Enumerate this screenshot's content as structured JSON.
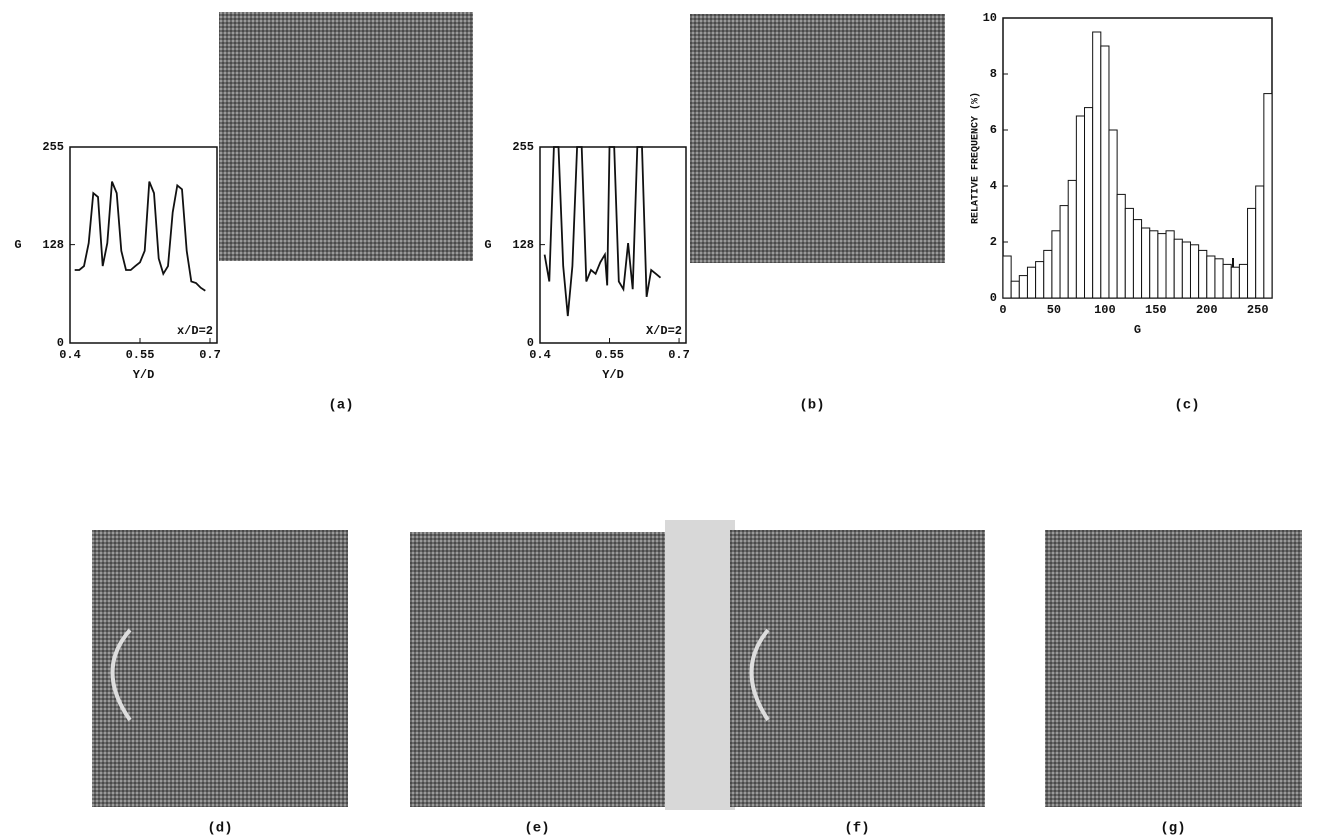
{
  "chart_data": [
    {
      "type": "line",
      "x": [
        0.41,
        0.42,
        0.43,
        0.44,
        0.45,
        0.46,
        0.47,
        0.48,
        0.49,
        0.5,
        0.51,
        0.52,
        0.53,
        0.54,
        0.55,
        0.56,
        0.57,
        0.58,
        0.59,
        0.6,
        0.61,
        0.62,
        0.63,
        0.64,
        0.65,
        0.66,
        0.67,
        0.68,
        0.69
      ],
      "values": [
        95,
        95,
        100,
        130,
        195,
        190,
        100,
        130,
        210,
        195,
        120,
        95,
        95,
        100,
        105,
        120,
        210,
        195,
        110,
        90,
        100,
        170,
        205,
        200,
        120,
        80,
        78,
        72,
        68
      ],
      "xlim": [
        0.4,
        0.715
      ],
      "ylim": [
        0,
        255
      ],
      "xticks": [
        0.4,
        0.55,
        0.7
      ],
      "yticks": [
        0,
        128,
        255
      ],
      "x_label": "Y/D",
      "y_label": "G",
      "annotation": "x/D=2",
      "color": "#111111"
    },
    {
      "type": "line",
      "x": [
        0.41,
        0.42,
        0.43,
        0.44,
        0.45,
        0.46,
        0.47,
        0.48,
        0.49,
        0.5,
        0.51,
        0.52,
        0.53,
        0.54,
        0.545,
        0.55,
        0.56,
        0.57,
        0.58,
        0.59,
        0.6,
        0.61,
        0.62,
        0.63,
        0.64,
        0.65,
        0.66
      ],
      "values": [
        115,
        80,
        255,
        255,
        100,
        35,
        100,
        255,
        255,
        80,
        95,
        90,
        105,
        115,
        75,
        255,
        255,
        80,
        70,
        130,
        70,
        255,
        255,
        60,
        95,
        90,
        85
      ],
      "xlim": [
        0.4,
        0.715
      ],
      "ylim": [
        0,
        255
      ],
      "xticks": [
        0.4,
        0.55,
        0.7
      ],
      "yticks": [
        0,
        128,
        255
      ],
      "x_label": "Y/D",
      "y_label": "G",
      "annotation": "X/D=2",
      "color": "#111111"
    },
    {
      "type": "histogram",
      "bins": [
        0,
        8,
        16,
        24,
        32,
        40,
        48,
        56,
        64,
        72,
        80,
        88,
        96,
        104,
        112,
        120,
        128,
        136,
        144,
        152,
        160,
        168,
        176,
        184,
        192,
        200,
        208,
        216,
        224,
        232,
        240,
        248,
        256,
        264
      ],
      "values": [
        1.5,
        0.6,
        0.8,
        1.1,
        1.3,
        1.7,
        2.4,
        3.3,
        4.2,
        6.5,
        6.8,
        9.5,
        9.0,
        6.0,
        3.7,
        3.2,
        2.8,
        2.5,
        2.4,
        2.3,
        2.4,
        2.1,
        2.0,
        1.9,
        1.7,
        1.5,
        1.4,
        1.2,
        1.1,
        1.2,
        3.2,
        4.0,
        7.3
      ],
      "xlim": [
        0,
        264
      ],
      "ylim": [
        0,
        10
      ],
      "xticks": [
        0,
        50,
        100,
        150,
        200,
        250
      ],
      "yticks": [
        0,
        2,
        4,
        6,
        8,
        10
      ],
      "x_label": "G",
      "y_label": "RELATIVE FREQUENCY (%)",
      "color": "#ffffff"
    }
  ],
  "panels": [
    "(a)",
    "(b)",
    "(c)",
    "(d)",
    "(e)",
    "(f)",
    "(g)"
  ]
}
